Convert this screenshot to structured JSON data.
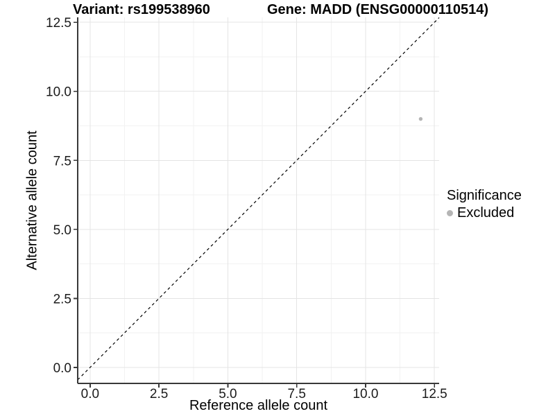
{
  "chart_data": {
    "type": "scatter",
    "title_left": "Variant: rs199538960",
    "title_right": "Gene: MADD (ENSG00000110514)",
    "xlabel": "Reference allele count",
    "ylabel": "Alternative allele count",
    "xlim": [
      -0.45,
      12.67
    ],
    "ylim": [
      -0.58,
      12.68
    ],
    "x_ticks": {
      "values": [
        0,
        2.5,
        5,
        7.5,
        10,
        12.5
      ],
      "labels": [
        "0.0",
        "2.5",
        "5.0",
        "7.5",
        "10.0",
        "12.5"
      ]
    },
    "y_ticks": {
      "values": [
        0,
        2.5,
        5,
        7.5,
        10,
        12.5
      ],
      "labels": [
        "0.0",
        "2.5",
        "5.0",
        "7.5",
        "10.0",
        "12.5"
      ]
    },
    "x_minor_ticks": [
      1.25,
      3.75,
      6.25,
      8.75,
      11.25
    ],
    "y_minor_ticks": [
      1.25,
      3.75,
      6.25,
      8.75,
      11.25
    ],
    "grid": "on",
    "points": [
      {
        "x": 12,
        "y": 9,
        "series": "Excluded"
      }
    ],
    "identity_line": {
      "style": "dashed",
      "slope": 1,
      "intercept": 0
    },
    "legend": {
      "title": "Significance",
      "position": "right",
      "items": [
        {
          "label": "Excluded",
          "color": "#b5b5b5",
          "marker": "circle"
        }
      ]
    },
    "colors": {
      "point": "#b5b5b5",
      "grid_major": "#e4e4e4",
      "grid_minor": "#f2f2f2",
      "axis": "#383838",
      "identity_line": "#000000",
      "text": "#000000"
    }
  }
}
